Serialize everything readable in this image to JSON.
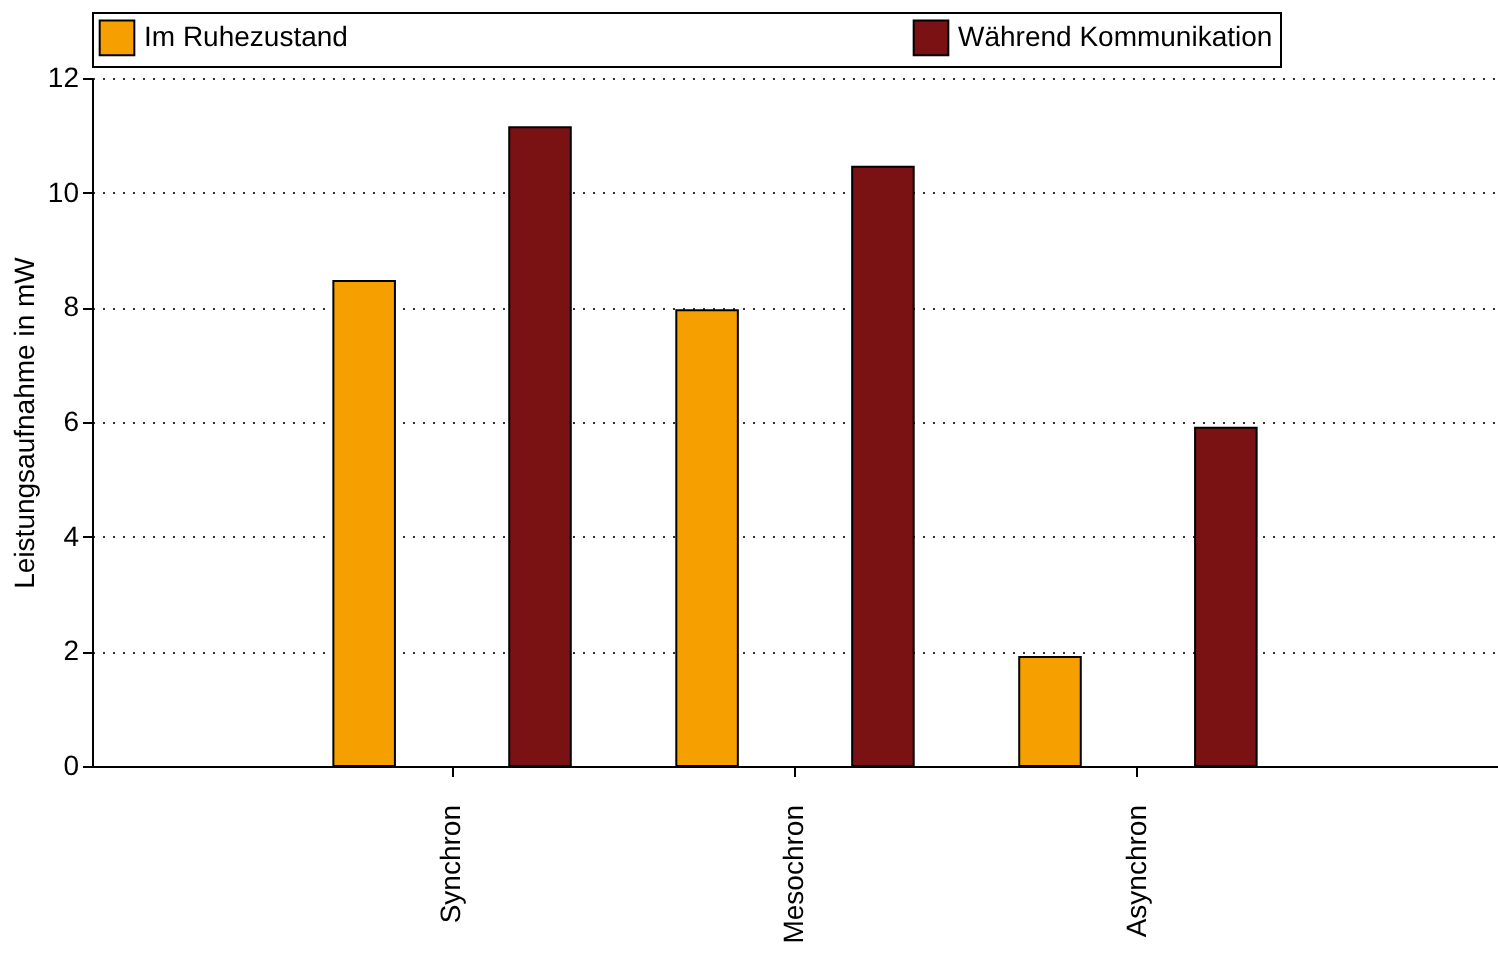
{
  "chart_data": {
    "type": "bar",
    "ylabel": "Leistungsaufnahme in mW",
    "categories": [
      "Synchron",
      "Mesochron",
      "Asynchron"
    ],
    "series": [
      {
        "name": "Im Ruhezustand",
        "color": "#f5a000",
        "values": [
          8.46,
          7.95,
          1.9
        ]
      },
      {
        "name": "Während Kommunikation",
        "color": "#7a1214",
        "values": [
          11.14,
          10.45,
          5.9
        ]
      }
    ],
    "ylim": [
      0,
      12
    ],
    "yticks": [
      0,
      2,
      4,
      6,
      8,
      10,
      12
    ],
    "grid": "y",
    "legend": "top"
  }
}
